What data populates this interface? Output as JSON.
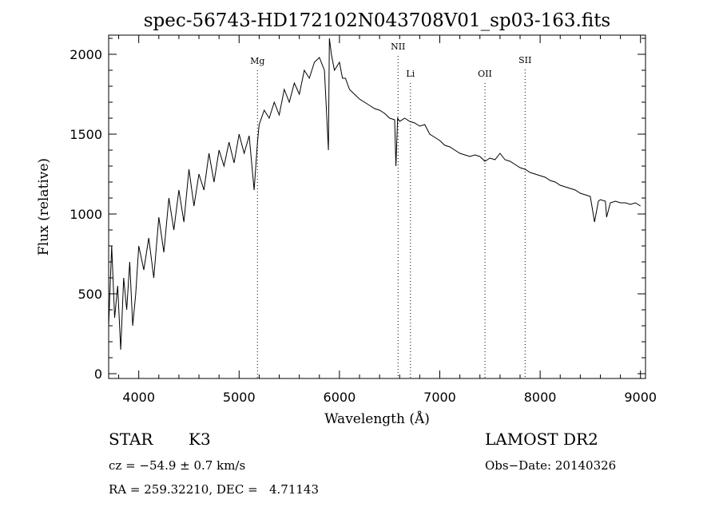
{
  "chart_data": {
    "type": "line",
    "title": "spec-56743-HD172102N043708V01_sp03-163.fits",
    "xlabel": "Wavelength (Å)",
    "ylabel": "Flux (relative)",
    "xlim": [
      3700,
      9050
    ],
    "ylim": [
      -30,
      2120
    ],
    "x_ticks": [
      4000,
      5000,
      6000,
      7000,
      8000,
      9000
    ],
    "y_ticks": [
      0,
      500,
      1000,
      1500,
      2000
    ],
    "grid": false,
    "series": [
      {
        "x": [
          3700,
          3730,
          3760,
          3790,
          3820,
          3850,
          3880,
          3910,
          3940,
          3970,
          4000,
          4050,
          4100,
          4150,
          4200,
          4250,
          4300,
          4350,
          4400,
          4450,
          4500,
          4550,
          4600,
          4650,
          4700,
          4750,
          4800,
          4850,
          4900,
          4950,
          5000,
          5050,
          5100,
          5150,
          5183,
          5200,
          5250,
          5300,
          5350,
          5400,
          5450,
          5500,
          5550,
          5600,
          5650,
          5700,
          5750,
          5800,
          5850,
          5890,
          5900,
          5920,
          5950,
          6000,
          6030,
          6060,
          6100,
          6150,
          6200,
          6250,
          6300,
          6350,
          6400,
          6450,
          6500,
          6550,
          6563,
          6580,
          6600,
          6650,
          6700,
          6750,
          6800,
          6850,
          6900,
          6950,
          7000,
          7050,
          7100,
          7150,
          7200,
          7250,
          7300,
          7350,
          7400,
          7450,
          7500,
          7550,
          7600,
          7650,
          7700,
          7750,
          7800,
          7850,
          7900,
          7950,
          8000,
          8050,
          8100,
          8150,
          8200,
          8250,
          8300,
          8350,
          8400,
          8450,
          8500,
          8542,
          8580,
          8600,
          8650,
          8662,
          8700,
          8750,
          8800,
          8850,
          8900,
          8950,
          9000
        ],
        "y": [
          300,
          800,
          350,
          550,
          150,
          600,
          400,
          700,
          300,
          500,
          800,
          650,
          850,
          600,
          980,
          760,
          1100,
          900,
          1150,
          950,
          1280,
          1050,
          1250,
          1150,
          1380,
          1200,
          1400,
          1300,
          1450,
          1320,
          1500,
          1380,
          1490,
          1150,
          1450,
          1560,
          1650,
          1600,
          1700,
          1620,
          1780,
          1700,
          1820,
          1750,
          1900,
          1850,
          1950,
          1980,
          1900,
          1400,
          2100,
          2000,
          1900,
          1950,
          1850,
          1850,
          1780,
          1750,
          1720,
          1700,
          1680,
          1660,
          1650,
          1630,
          1600,
          1590,
          1300,
          1600,
          1580,
          1600,
          1580,
          1570,
          1550,
          1560,
          1500,
          1480,
          1460,
          1430,
          1420,
          1400,
          1380,
          1370,
          1360,
          1370,
          1360,
          1330,
          1350,
          1340,
          1380,
          1340,
          1330,
          1310,
          1290,
          1280,
          1260,
          1250,
          1240,
          1230,
          1210,
          1200,
          1180,
          1170,
          1160,
          1150,
          1130,
          1120,
          1110,
          950,
          1080,
          1090,
          1080,
          980,
          1070,
          1080,
          1070,
          1070,
          1060,
          1070,
          1050
        ]
      }
    ],
    "lines": [
      {
        "label": "Mg",
        "x": 5183
      },
      {
        "label": "NII",
        "x": 6584
      },
      {
        "label": "Li",
        "x": 6708
      },
      {
        "label": "OII",
        "x": 7450
      },
      {
        "label": "SII",
        "x": 7850
      }
    ]
  },
  "info": {
    "object_class": "STAR",
    "subclass": "K3",
    "cz": "cz = −54.9 ± 0.7 km/s",
    "radec": "RA = 259.32210, DEC =   4.71143",
    "survey": "LAMOST DR2",
    "obs_date": "Obs−Date: 20140326"
  }
}
